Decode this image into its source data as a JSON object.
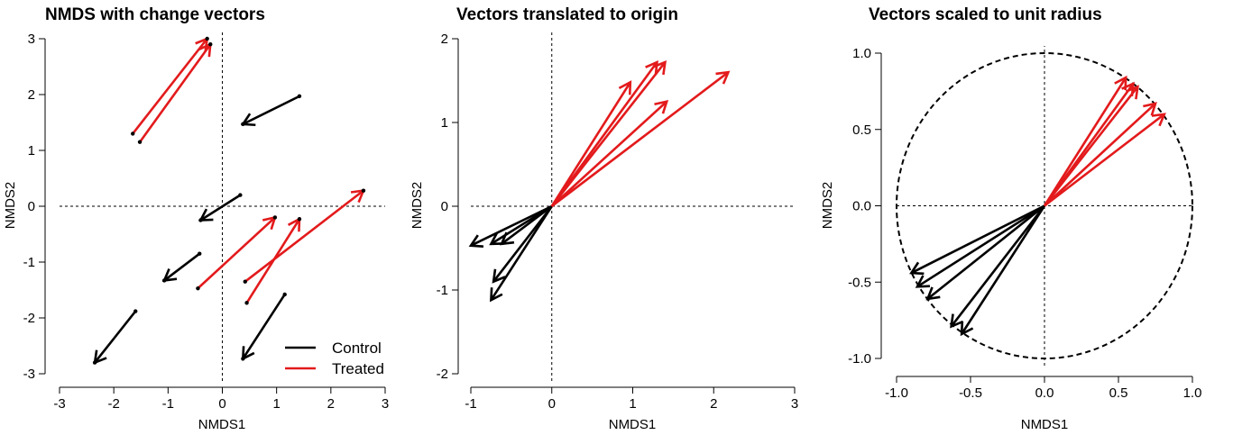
{
  "legend": {
    "placement": "bottom-right",
    "entries": [
      {
        "label": "Control",
        "color": "#000000"
      },
      {
        "label": "Treated",
        "color": "#e31a1c"
      }
    ]
  },
  "chart_data": [
    {
      "type": "line",
      "title": "NMDS with change vectors",
      "xlabel": "NMDS1",
      "ylabel": "NMDS2",
      "xlim": [
        -3,
        3
      ],
      "ylim": [
        -3,
        3
      ],
      "xticks": [
        "-3",
        "-2",
        "-1",
        "0",
        "1",
        "2",
        "3"
      ],
      "yticks": [
        "-3",
        "-2",
        "-1",
        "0",
        "1",
        "2",
        "3"
      ],
      "reference_lines": {
        "x": 0,
        "y": 0,
        "style": "dotted"
      },
      "legend": true,
      "series": [
        {
          "name": "Control",
          "color": "#000000",
          "vectors": [
            {
              "x0": 1.42,
              "y0": 1.97,
              "x1": 0.38,
              "y1": 1.47
            },
            {
              "x0": 0.33,
              "y0": 0.2,
              "x1": -0.4,
              "y1": -0.25
            },
            {
              "x0": -0.42,
              "y0": -0.85,
              "x1": -1.07,
              "y1": -1.33
            },
            {
              "x0": -1.6,
              "y0": -1.88,
              "x1": -2.35,
              "y1": -2.8
            },
            {
              "x0": 1.15,
              "y0": -1.58,
              "x1": 0.38,
              "y1": -2.73
            }
          ]
        },
        {
          "name": "Treated",
          "color": "#e31a1c",
          "vectors": [
            {
              "x0": -1.65,
              "y0": 1.3,
              "x1": -0.28,
              "y1": 3.0
            },
            {
              "x0": -1.52,
              "y0": 1.15,
              "x1": -0.22,
              "y1": 2.9
            },
            {
              "x0": -0.45,
              "y0": -1.47,
              "x1": 0.97,
              "y1": -0.2
            },
            {
              "x0": 0.45,
              "y0": -1.73,
              "x1": 1.42,
              "y1": -0.23
            },
            {
              "x0": 0.42,
              "y0": -1.35,
              "x1": 2.6,
              "y1": 0.28
            }
          ]
        }
      ]
    },
    {
      "type": "line",
      "title": "Vectors translated to origin",
      "xlabel": "NMDS1",
      "ylabel": "NMDS2",
      "xlim": [
        -1,
        3
      ],
      "ylim": [
        -2,
        2
      ],
      "xticks": [
        "-1",
        "0",
        "1",
        "2",
        "3"
      ],
      "yticks": [
        "-2",
        "-1",
        "0",
        "1",
        "2"
      ],
      "reference_lines": {
        "x": 0,
        "y": 0,
        "style": "dotted"
      },
      "legend": false,
      "series": [
        {
          "name": "Control",
          "color": "#000000",
          "vectors": [
            {
              "x0": 0,
              "y0": 0,
              "x1": -1.0,
              "y1": -0.47
            },
            {
              "x0": 0,
              "y0": 0,
              "x1": -0.75,
              "y1": -0.45
            },
            {
              "x0": 0,
              "y0": 0,
              "x1": -0.62,
              "y1": -0.45
            },
            {
              "x0": 0,
              "y0": 0,
              "x1": -0.72,
              "y1": -0.9
            },
            {
              "x0": 0,
              "y0": 0,
              "x1": -0.75,
              "y1": -1.12
            }
          ]
        },
        {
          "name": "Treated",
          "color": "#e31a1c",
          "vectors": [
            {
              "x0": 0,
              "y0": 0,
              "x1": 0.97,
              "y1": 1.48
            },
            {
              "x0": 0,
              "y0": 0,
              "x1": 1.3,
              "y1": 1.72
            },
            {
              "x0": 0,
              "y0": 0,
              "x1": 1.4,
              "y1": 1.72
            },
            {
              "x0": 0,
              "y0": 0,
              "x1": 1.42,
              "y1": 1.25
            },
            {
              "x0": 0,
              "y0": 0,
              "x1": 2.18,
              "y1": 1.6
            }
          ]
        }
      ]
    },
    {
      "type": "line",
      "title": "Vectors scaled to unit radius",
      "xlabel": "NMDS1",
      "ylabel": "NMDS2",
      "xlim": [
        -1,
        1
      ],
      "ylim": [
        -1,
        1
      ],
      "xticks": [
        "-1.0",
        "-0.5",
        "0.0",
        "0.5",
        "1.0"
      ],
      "yticks": [
        "-1.0",
        "-0.5",
        "0.0",
        "0.5",
        "1.0"
      ],
      "reference_lines": {
        "x": 0,
        "y": 0,
        "style": "dotted"
      },
      "unit_circle": {
        "radius": 1,
        "style": "dashed"
      },
      "legend": false,
      "series": [
        {
          "name": "Control",
          "color": "#000000",
          "vectors": [
            {
              "x0": 0,
              "y0": 0,
              "x1": -0.9,
              "y1": -0.44
            },
            {
              "x0": 0,
              "y0": 0,
              "x1": -0.86,
              "y1": -0.53
            },
            {
              "x0": 0,
              "y0": 0,
              "x1": -0.79,
              "y1": -0.61
            },
            {
              "x0": 0,
              "y0": 0,
              "x1": -0.63,
              "y1": -0.79
            },
            {
              "x0": 0,
              "y0": 0,
              "x1": -0.56,
              "y1": -0.84
            }
          ]
        },
        {
          "name": "Treated",
          "color": "#e31a1c",
          "vectors": [
            {
              "x0": 0,
              "y0": 0,
              "x1": 0.55,
              "y1": 0.84
            },
            {
              "x0": 0,
              "y0": 0,
              "x1": 0.6,
              "y1": 0.8
            },
            {
              "x0": 0,
              "y0": 0,
              "x1": 0.63,
              "y1": 0.78
            },
            {
              "x0": 0,
              "y0": 0,
              "x1": 0.75,
              "y1": 0.67
            },
            {
              "x0": 0,
              "y0": 0,
              "x1": 0.81,
              "y1": 0.6
            }
          ]
        }
      ]
    }
  ]
}
